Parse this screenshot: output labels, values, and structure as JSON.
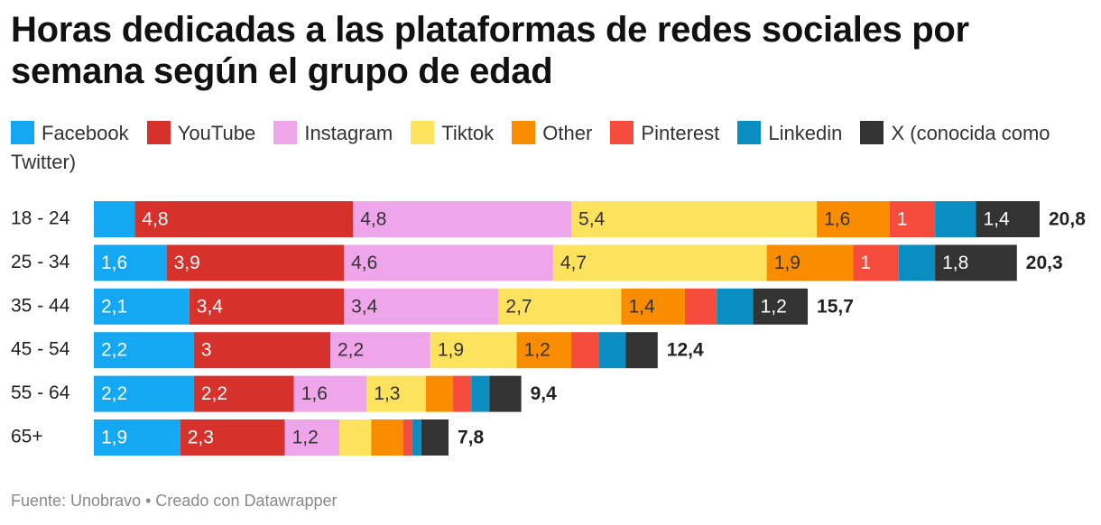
{
  "chart_data": {
    "type": "stacked-bar-horizontal",
    "title": "Horas dedicadas a las plataformas de redes sociales por semana según el grupo de edad",
    "source": "Fuente: Unobravo • Creado con Datawrapper",
    "categories": [
      "18 - 24",
      "25 - 34",
      "35 - 44",
      "45 - 54",
      "55 - 64",
      "65+"
    ],
    "xlim": [
      0,
      20.8
    ],
    "series": [
      {
        "name": "Facebook",
        "color": "#14a8f2",
        "values": [
          0.9,
          1.6,
          2.1,
          2.2,
          2.2,
          1.9
        ],
        "value_labels": [
          null,
          "1,6",
          "2,1",
          "2,2",
          "2,2",
          "1,9"
        ]
      },
      {
        "name": "YouTube",
        "color": "#d6312b",
        "values": [
          4.8,
          3.9,
          3.4,
          3,
          2.2,
          2.3
        ],
        "value_labels": [
          "4,8",
          "3,9",
          "3,4",
          "3",
          "2,2",
          "2,3"
        ]
      },
      {
        "name": "Instagram",
        "color": "#eea5ea",
        "values": [
          4.8,
          4.6,
          3.4,
          2.2,
          1.6,
          1.2
        ],
        "value_labels": [
          "4,8",
          "4,6",
          "3,4",
          "2,2",
          "1,6",
          "1,2"
        ]
      },
      {
        "name": "Tiktok",
        "color": "#fde25e",
        "values": [
          5.4,
          4.7,
          2.7,
          1.9,
          1.3,
          0.7
        ],
        "value_labels": [
          "5,4",
          "4,7",
          "2,7",
          "1,9",
          "1,3",
          null
        ]
      },
      {
        "name": "Other",
        "color": "#fa8c00",
        "values": [
          1.6,
          1.9,
          1.4,
          1.2,
          0.6,
          0.7
        ],
        "value_labels": [
          "1,6",
          "1,9",
          "1,4",
          "1,2",
          null,
          null
        ]
      },
      {
        "name": "Pinterest",
        "color": "#f54c3e",
        "values": [
          1,
          1,
          0.7,
          0.6,
          0.4,
          0.2
        ],
        "value_labels": [
          "1",
          "1",
          null,
          null,
          null,
          null
        ]
      },
      {
        "name": "Linkedin",
        "color": "#0a8dc0",
        "values": [
          0.9,
          0.8,
          0.8,
          0.6,
          0.4,
          0.2
        ],
        "value_labels": [
          null,
          null,
          null,
          null,
          null,
          null
        ]
      },
      {
        "name": "X (conocida como Twitter)",
        "color": "#333333",
        "values": [
          1.4,
          1.8,
          1.2,
          0.7,
          0.7,
          0.6
        ],
        "value_labels": [
          "1,4",
          "1,8",
          "1,2",
          null,
          null,
          null
        ]
      }
    ],
    "totals": [
      20.8,
      20.3,
      15.7,
      12.4,
      9.4,
      7.8
    ],
    "total_labels": [
      "20,8",
      "20,3",
      "15,7",
      "12,4",
      "9,4",
      "7,8"
    ]
  }
}
